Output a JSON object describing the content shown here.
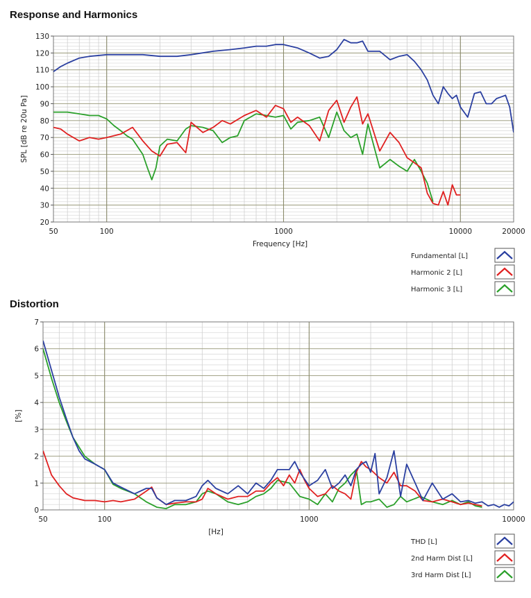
{
  "chart_data": [
    {
      "type": "line",
      "title": "Response and Harmonics",
      "xlabel": "Frequency [Hz]",
      "ylabel": "SPL [dB re 20u Pa]",
      "xscale": "log",
      "xlim": [
        50,
        20000
      ],
      "ylim": [
        20,
        130
      ],
      "xticks": [
        50,
        100,
        1000,
        10000,
        20000
      ],
      "yticks": [
        20,
        30,
        40,
        50,
        60,
        70,
        80,
        90,
        100,
        110,
        120,
        130
      ],
      "grid": true,
      "legend_position": "bottom-right",
      "series": [
        {
          "name": "Fundamental [L]",
          "color": "#2a3fa0",
          "x": [
            50,
            55,
            60,
            70,
            80,
            100,
            130,
            160,
            200,
            250,
            300,
            400,
            500,
            600,
            700,
            800,
            900,
            1000,
            1200,
            1400,
            1600,
            1800,
            2000,
            2200,
            2400,
            2600,
            2800,
            3000,
            3500,
            4000,
            4500,
            5000,
            5500,
            6000,
            6500,
            7000,
            7500,
            8000,
            8500,
            9000,
            9500,
            10000,
            11000,
            12000,
            13000,
            14000,
            15000,
            16000,
            17000,
            18000,
            19000,
            20000
          ],
          "y": [
            109,
            112,
            114,
            117,
            118,
            119,
            119,
            119,
            118,
            118,
            119,
            121,
            122,
            123,
            124,
            124,
            125,
            125,
            123,
            120,
            117,
            118,
            122,
            128,
            126,
            126,
            127,
            121,
            121,
            116,
            118,
            119,
            115,
            110,
            104,
            95,
            90,
            100,
            96,
            93,
            95,
            88,
            82,
            96,
            97,
            90,
            90,
            93,
            94,
            95,
            88,
            73
          ]
        },
        {
          "name": "Harmonic 2 [L]",
          "color": "#e02020",
          "x": [
            50,
            55,
            60,
            70,
            80,
            90,
            100,
            120,
            140,
            160,
            180,
            200,
            220,
            250,
            280,
            300,
            350,
            400,
            450,
            500,
            600,
            700,
            800,
            900,
            1000,
            1100,
            1200,
            1400,
            1600,
            1800,
            2000,
            2200,
            2400,
            2600,
            2800,
            3000,
            3500,
            4000,
            4500,
            5000,
            5500,
            6000,
            6500,
            7000,
            7500,
            8000,
            8500,
            9000,
            9500,
            10000
          ],
          "y": [
            76,
            75,
            72,
            68,
            70,
            69,
            70,
            72,
            76,
            68,
            62,
            59,
            66,
            67,
            61,
            79,
            73,
            76,
            80,
            78,
            83,
            86,
            82,
            89,
            87,
            79,
            82,
            77,
            68,
            86,
            92,
            79,
            88,
            94,
            78,
            84,
            62,
            73,
            67,
            58,
            55,
            52,
            37,
            31,
            30,
            38,
            30,
            42,
            36,
            36
          ]
        },
        {
          "name": "Harmonic 3 [L]",
          "color": "#2aa02a",
          "x": [
            50,
            60,
            70,
            80,
            90,
            100,
            110,
            120,
            130,
            140,
            160,
            170,
            180,
            190,
            200,
            220,
            250,
            280,
            300,
            350,
            400,
            450,
            500,
            550,
            600,
            700,
            800,
            900,
            1000,
            1100,
            1200,
            1400,
            1600,
            1800,
            2000,
            2200,
            2400,
            2600,
            2800,
            3000,
            3500,
            4000,
            4500,
            5000,
            5500,
            6000,
            6500,
            7000
          ],
          "y": [
            85,
            85,
            84,
            83,
            83,
            81,
            77,
            74,
            71,
            69,
            60,
            52,
            45,
            52,
            65,
            69,
            68,
            75,
            77,
            76,
            74,
            67,
            70,
            71,
            80,
            84,
            83,
            82,
            83,
            75,
            79,
            80,
            82,
            70,
            85,
            74,
            70,
            72,
            60,
            78,
            52,
            57,
            53,
            50,
            57,
            50,
            43,
            32
          ]
        }
      ]
    },
    {
      "type": "line",
      "title": "Distortion",
      "xlabel": "[Hz]",
      "ylabel": "[%]",
      "xscale": "log",
      "xlim": [
        50,
        10000
      ],
      "ylim": [
        0,
        7
      ],
      "xticks": [
        50,
        100,
        1000,
        10000
      ],
      "yticks": [
        0,
        1,
        2,
        3,
        4,
        5,
        6,
        7
      ],
      "grid": true,
      "legend_position": "bottom-right",
      "series": [
        {
          "name": "THD [L]",
          "color": "#2a3fa0",
          "x": [
            50,
            55,
            60,
            65,
            70,
            75,
            80,
            90,
            100,
            110,
            120,
            140,
            160,
            170,
            180,
            200,
            220,
            250,
            280,
            300,
            320,
            350,
            400,
            450,
            500,
            550,
            600,
            650,
            700,
            800,
            850,
            900,
            1000,
            1100,
            1200,
            1300,
            1400,
            1500,
            1600,
            1700,
            1800,
            1900,
            2000,
            2100,
            2200,
            2400,
            2600,
            2800,
            3000,
            3300,
            3600,
            4000,
            4500,
            5000,
            5500,
            6000,
            6500,
            7000,
            7500,
            8000,
            8500,
            9000,
            9500,
            10000
          ],
          "y": [
            6.3,
            5.2,
            4.2,
            3.4,
            2.7,
            2.2,
            1.9,
            1.7,
            1.5,
            1.0,
            0.85,
            0.6,
            0.8,
            0.8,
            0.45,
            0.2,
            0.35,
            0.35,
            0.5,
            0.9,
            1.1,
            0.8,
            0.6,
            0.9,
            0.6,
            1.0,
            0.8,
            1.1,
            1.5,
            1.5,
            1.8,
            1.4,
            0.9,
            1.1,
            1.5,
            0.8,
            1.0,
            1.3,
            0.9,
            1.5,
            1.7,
            1.8,
            1.4,
            2.1,
            0.6,
            1.2,
            2.2,
            0.5,
            1.7,
            1.0,
            0.35,
            1.0,
            0.4,
            0.6,
            0.3,
            0.35,
            0.25,
            0.3,
            0.15,
            0.2,
            0.1,
            0.2,
            0.15,
            0.3
          ]
        },
        {
          "name": "2nd Harm Dist [L]",
          "color": "#e02020",
          "x": [
            50,
            55,
            60,
            65,
            70,
            80,
            90,
            100,
            110,
            120,
            140,
            160,
            170,
            180,
            200,
            220,
            250,
            280,
            300,
            320,
            350,
            400,
            450,
            500,
            550,
            600,
            650,
            700,
            750,
            800,
            850,
            900,
            950,
            1000,
            1100,
            1200,
            1300,
            1400,
            1500,
            1600,
            1700,
            1800,
            1900,
            2000,
            2200,
            2400,
            2600,
            2800,
            3000,
            3300,
            3600,
            4000,
            4500,
            5000,
            5500,
            6000,
            6500,
            7000
          ],
          "y": [
            2.2,
            1.3,
            0.9,
            0.6,
            0.45,
            0.35,
            0.35,
            0.3,
            0.35,
            0.3,
            0.4,
            0.7,
            0.85,
            0.45,
            0.2,
            0.25,
            0.3,
            0.3,
            0.4,
            0.8,
            0.6,
            0.4,
            0.5,
            0.5,
            0.7,
            0.7,
            1.0,
            1.2,
            0.9,
            1.3,
            1.0,
            1.5,
            1.1,
            0.8,
            0.5,
            0.6,
            0.9,
            0.7,
            0.6,
            0.4,
            1.4,
            1.8,
            1.6,
            1.5,
            1.2,
            1.0,
            1.4,
            0.9,
            0.9,
            0.7,
            0.35,
            0.3,
            0.4,
            0.3,
            0.2,
            0.25,
            0.2,
            0.15
          ]
        },
        {
          "name": "3rd Harm Dist [L]",
          "color": "#2aa02a",
          "x": [
            50,
            55,
            60,
            65,
            70,
            80,
            90,
            100,
            110,
            120,
            140,
            160,
            180,
            200,
            220,
            250,
            280,
            300,
            320,
            350,
            400,
            450,
            500,
            550,
            600,
            650,
            700,
            800,
            900,
            1000,
            1100,
            1200,
            1300,
            1400,
            1500,
            1600,
            1700,
            1800,
            1900,
            2000,
            2200,
            2400,
            2600,
            2800,
            3000,
            3500,
            4000,
            4500,
            5000,
            5500,
            6000,
            6500,
            7000
          ],
          "y": [
            6.0,
            4.9,
            4.0,
            3.3,
            2.7,
            2.0,
            1.7,
            1.5,
            0.95,
            0.8,
            0.6,
            0.3,
            0.1,
            0.05,
            0.2,
            0.2,
            0.3,
            0.6,
            0.7,
            0.6,
            0.3,
            0.2,
            0.3,
            0.5,
            0.6,
            0.8,
            1.1,
            1.0,
            0.5,
            0.4,
            0.2,
            0.6,
            0.3,
            0.8,
            1.0,
            1.3,
            1.5,
            0.2,
            0.3,
            0.3,
            0.4,
            0.1,
            0.2,
            0.5,
            0.3,
            0.5,
            0.3,
            0.2,
            0.35,
            0.2,
            0.3,
            0.15,
            0.1
          ]
        }
      ]
    }
  ]
}
